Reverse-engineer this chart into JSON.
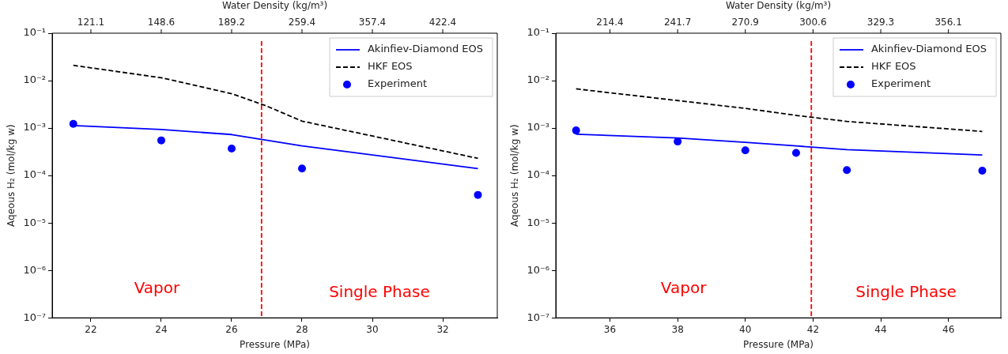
{
  "chart_data": [
    {
      "type": "line",
      "xlabel": "Pressure (MPa)",
      "x2label": "Water Density (kg/m³)",
      "ylabel": "Aqeous H₂ (mol/kg w)",
      "log": "y",
      "grid": false,
      "legend": "top right",
      "xlim": [
        20.9,
        33.55
      ],
      "xticks": [
        22,
        24,
        26,
        28,
        30,
        32
      ],
      "ylim": [
        1e-07,
        0.1
      ],
      "yticks": [
        {
          "value": 1e-07,
          "label": "10⁻⁷"
        },
        {
          "value": 1e-06,
          "label": "10⁻⁶"
        },
        {
          "value": 1e-05,
          "label": "10⁻⁵"
        },
        {
          "value": 0.0001,
          "label": "10⁻⁴"
        },
        {
          "value": 0.001,
          "label": "10⁻³"
        },
        {
          "value": 0.01,
          "label": "10⁻²"
        },
        {
          "value": 0.1,
          "label": "10⁻¹"
        }
      ],
      "series": [
        {
          "name": "Akinfiev-Diamond EOS",
          "type": "line",
          "line_style": "solid",
          "color": "#0000ff",
          "x": [
            21.5,
            24,
            26,
            28,
            33
          ],
          "values": [
            0.00113,
            0.00093,
            0.00073,
            0.00042,
            0.00014
          ]
        },
        {
          "name": "HKF EOS",
          "type": "line",
          "line_style": "dashed",
          "color": "#000000",
          "x": [
            21.5,
            24,
            26,
            27,
            28,
            33
          ],
          "values": [
            0.021,
            0.0115,
            0.0053,
            0.0029,
            0.0014,
            0.00023
          ]
        },
        {
          "name": "Experiment",
          "type": "scatter",
          "marker": "circle",
          "color": "#0000ff",
          "x": [
            21.5,
            24,
            26,
            28,
            33
          ],
          "values": [
            0.00123,
            0.00055,
            0.00037,
            0.00014,
            3.9e-05
          ]
        }
      ],
      "ref_lines": [
        {
          "axis": "x",
          "value": 26.85,
          "color": "#ff0000",
          "line_style": "dashed"
        }
      ],
      "annotations": [
        "Vapor",
        "Single Phase",
        "121.1",
        "148.6",
        "189.2",
        "259.4",
        "357.4",
        "422.4"
      ]
    },
    {
      "type": "line",
      "xlabel": "Pressure (MPa)",
      "x2label": "Water Density (kg/m³)",
      "ylabel": "Aqeous H₂ (mol/kg w)",
      "log": "y",
      "grid": false,
      "legend": "top right",
      "xlim": [
        34.4,
        47.55
      ],
      "xticks": [
        36,
        38,
        40,
        42,
        44,
        46
      ],
      "ylim": [
        1e-07,
        0.1
      ],
      "yticks": [
        {
          "value": 1e-07,
          "label": "10⁻⁷"
        },
        {
          "value": 1e-06,
          "label": "10⁻⁶"
        },
        {
          "value": 1e-05,
          "label": "10⁻⁵"
        },
        {
          "value": 0.0001,
          "label": "10⁻⁴"
        },
        {
          "value": 0.001,
          "label": "10⁻³"
        },
        {
          "value": 0.01,
          "label": "10⁻²"
        },
        {
          "value": 0.1,
          "label": "10⁻¹"
        }
      ],
      "series": [
        {
          "name": "Akinfiev-Diamond EOS",
          "type": "line",
          "line_style": "solid",
          "color": "#0000ff",
          "x": [
            35,
            38,
            40,
            41.5,
            43,
            47
          ],
          "values": [
            0.00074,
            0.00062,
            0.0005,
            0.00042,
            0.00035,
            0.00027
          ]
        },
        {
          "name": "HKF EOS",
          "type": "line",
          "line_style": "dashed",
          "color": "#000000",
          "x": [
            35,
            38,
            40,
            41.5,
            43,
            47
          ],
          "values": [
            0.0067,
            0.0038,
            0.0026,
            0.00185,
            0.00138,
            0.00085
          ]
        },
        {
          "name": "Experiment",
          "type": "scatter",
          "marker": "circle",
          "color": "#0000ff",
          "x": [
            35,
            38,
            40,
            41.5,
            43,
            47
          ],
          "values": [
            0.00089,
            0.00052,
            0.00034,
            0.0003,
            0.00013,
            0.000126
          ]
        }
      ],
      "ref_lines": [
        {
          "axis": "x",
          "value": 41.95,
          "color": "#ff0000",
          "line_style": "dashed"
        }
      ],
      "annotations": [
        "Vapor",
        "Single Phase",
        "214.4",
        "241.7",
        "270.9",
        "300.6",
        "329.3",
        "356.1"
      ]
    }
  ]
}
